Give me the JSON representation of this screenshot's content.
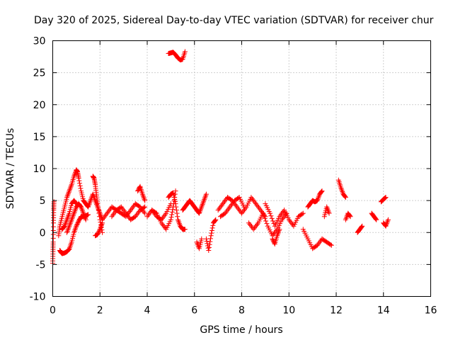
{
  "chart_data": {
    "type": "scatter",
    "title": "Day 320 of 2025, Sidereal Day-to-day VTEC variation (SDTVAR) for receiver chur",
    "xlabel": "GPS time / hours",
    "ylabel": "SDTVAR / TECUs",
    "xlim": [
      0,
      16
    ],
    "ylim": [
      -10,
      30
    ],
    "xticks": [
      0,
      2,
      4,
      6,
      8,
      10,
      12,
      14,
      16
    ],
    "yticks": [
      -10,
      -5,
      0,
      5,
      10,
      15,
      20,
      25,
      30
    ],
    "grid": true,
    "marker": "plus",
    "color": "#ff0000",
    "segments": [
      {
        "x": [
          0.0,
          0.01,
          0.02,
          0.03,
          0.04,
          0.05
        ],
        "y": [
          -4.8,
          -3.0,
          -1.5,
          1.5,
          3.5,
          4.8
        ]
      },
      {
        "x": [
          0.3,
          0.35,
          0.4,
          0.5,
          0.6,
          0.7
        ],
        "y": [
          -2.8,
          -3.1,
          -3.3,
          -3.2,
          -3.0,
          -2.6
        ]
      },
      {
        "x": [
          0.7,
          0.8,
          0.9,
          1.0,
          1.1,
          1.2,
          1.3,
          1.4,
          1.5
        ],
        "y": [
          -2.6,
          -1.5,
          0.0,
          1.0,
          1.8,
          2.5,
          2.5,
          2.6,
          2.8
        ]
      },
      {
        "x": [
          0.25,
          0.3,
          0.4,
          0.5,
          0.6,
          0.7,
          0.8,
          0.9,
          1.0,
          1.05,
          1.1,
          1.2,
          1.3
        ],
        "y": [
          -0.5,
          1.0,
          2.5,
          4.0,
          5.5,
          6.5,
          7.5,
          8.8,
          9.8,
          9.5,
          8.5,
          6.5,
          5.0
        ]
      },
      {
        "x": [
          1.3,
          1.4,
          1.5,
          1.6,
          1.7,
          1.8,
          1.9,
          2.0,
          2.1
        ],
        "y": [
          5.0,
          4.5,
          4.0,
          5.0,
          6.0,
          5.0,
          4.0,
          3.0,
          2.0
        ]
      },
      {
        "x": [
          0.6,
          0.7,
          0.8,
          0.9,
          1.0,
          1.1,
          1.2,
          1.3,
          1.4
        ],
        "y": [
          0.0,
          1.0,
          2.0,
          3.0,
          4.0,
          4.5,
          4.0,
          3.0,
          2.0
        ]
      },
      {
        "x": [
          0.4,
          0.5,
          0.6,
          0.7,
          0.8,
          0.9,
          1.0
        ],
        "y": [
          0.5,
          1.0,
          2.0,
          3.0,
          4.5,
          5.0,
          4.5
        ]
      },
      {
        "x": [
          1.7,
          1.75,
          1.8,
          1.85,
          1.9,
          2.0,
          2.1
        ],
        "y": [
          8.8,
          8.5,
          7.5,
          6.0,
          4.5,
          2.0,
          0.0
        ]
      },
      {
        "x": [
          1.8,
          1.9,
          2.0,
          2.1
        ],
        "y": [
          -0.5,
          -0.3,
          0.5,
          1.5
        ]
      },
      {
        "x": [
          2.1,
          2.3,
          2.5,
          2.7,
          2.9,
          3.1,
          3.3,
          3.5,
          3.7,
          3.9
        ],
        "y": [
          2.0,
          3.0,
          4.0,
          3.5,
          3.0,
          2.5,
          3.5,
          4.5,
          4.0,
          3.0
        ]
      },
      {
        "x": [
          2.5,
          2.7,
          2.9,
          3.1,
          3.3,
          3.5,
          3.7,
          3.9
        ],
        "y": [
          2.5,
          3.5,
          4.0,
          3.0,
          2.0,
          2.5,
          3.5,
          4.0
        ]
      },
      {
        "x": [
          3.6,
          3.7,
          3.8,
          3.9
        ],
        "y": [
          6.5,
          7.2,
          6.0,
          5.0
        ]
      },
      {
        "x": [
          4.0,
          4.2,
          4.4,
          4.6,
          4.8,
          5.0,
          5.1,
          5.2
        ],
        "y": [
          2.5,
          3.5,
          3.0,
          1.5,
          0.5,
          2.0,
          4.0,
          6.5
        ]
      },
      {
        "x": [
          4.2,
          4.4,
          4.6,
          4.8,
          5.0
        ],
        "y": [
          3.5,
          2.5,
          2.0,
          3.0,
          4.5
        ]
      },
      {
        "x": [
          4.9,
          5.0,
          5.1,
          5.2,
          5.3,
          5.4,
          5.5,
          5.6
        ],
        "y": [
          5.5,
          6.0,
          6.2,
          4.5,
          2.0,
          1.0,
          0.5,
          0.5
        ]
      },
      {
        "x": [
          4.9,
          5.0,
          5.1,
          5.2,
          5.3,
          5.4,
          5.5,
          5.6
        ],
        "y": [
          28.0,
          28.1,
          28.2,
          27.8,
          27.3,
          27.0,
          27.1,
          28.3
        ]
      },
      {
        "x": [
          5.5,
          5.6,
          5.7,
          5.8,
          5.9,
          6.0,
          6.1,
          6.2,
          6.3,
          6.4,
          6.5
        ],
        "y": [
          3.5,
          4.0,
          4.5,
          5.0,
          4.5,
          4.0,
          3.5,
          3.0,
          4.0,
          5.0,
          6.0
        ]
      },
      {
        "x": [
          6.1,
          6.2,
          6.3
        ],
        "y": [
          -1.5,
          -2.5,
          -1.0
        ]
      },
      {
        "x": [
          6.5,
          6.6,
          6.7,
          6.8,
          6.9
        ],
        "y": [
          -1.0,
          -2.8,
          -0.5,
          1.5,
          2.0
        ]
      },
      {
        "x": [
          7.0,
          7.2,
          7.4,
          7.6,
          7.8,
          8.0,
          8.2,
          8.4,
          8.6,
          8.8,
          9.0
        ],
        "y": [
          3.5,
          4.5,
          5.5,
          5.0,
          4.0,
          3.0,
          4.0,
          5.5,
          4.5,
          3.5,
          2.5
        ]
      },
      {
        "x": [
          7.1,
          7.3,
          7.5,
          7.7,
          7.9,
          8.1
        ],
        "y": [
          2.5,
          3.0,
          4.0,
          5.0,
          5.5,
          4.0
        ]
      },
      {
        "x": [
          8.3,
          8.5,
          8.7,
          8.9,
          9.1,
          9.3,
          9.5,
          9.7,
          9.9
        ],
        "y": [
          1.5,
          0.5,
          1.5,
          3.0,
          1.0,
          -0.5,
          0.5,
          2.0,
          3.0
        ]
      },
      {
        "x": [
          9.0,
          9.2,
          9.4,
          9.6,
          9.8,
          10.0,
          10.2,
          10.4,
          10.6
        ],
        "y": [
          4.5,
          3.0,
          1.0,
          2.5,
          3.5,
          2.0,
          1.0,
          2.5,
          3.0
        ]
      },
      {
        "x": [
          9.3,
          9.4,
          9.5,
          9.6
        ],
        "y": [
          -1.0,
          -1.8,
          -0.5,
          0.5
        ]
      },
      {
        "x": [
          10.6,
          10.8,
          11.0,
          11.2,
          11.4,
          11.6,
          11.8
        ],
        "y": [
          0.5,
          -1.0,
          -2.5,
          -2.0,
          -1.0,
          -1.5,
          -2.0
        ]
      },
      {
        "x": [
          10.8,
          10.9,
          11.0,
          11.1,
          11.2,
          11.3,
          11.4
        ],
        "y": [
          4.0,
          4.5,
          5.0,
          4.8,
          5.0,
          6.0,
          6.5
        ]
      },
      {
        "x": [
          11.5,
          11.6,
          11.7
        ],
        "y": [
          2.5,
          4.0,
          3.0
        ]
      },
      {
        "x": [
          12.1,
          12.2,
          12.3,
          12.4
        ],
        "y": [
          8.2,
          7.0,
          6.0,
          5.5
        ]
      },
      {
        "x": [
          12.4,
          12.5,
          12.6
        ],
        "y": [
          2.0,
          3.0,
          2.5
        ]
      },
      {
        "x": [
          12.9,
          13.0,
          13.1
        ],
        "y": [
          0.0,
          0.5,
          1.0
        ]
      },
      {
        "x": [
          13.5,
          13.6,
          13.7
        ],
        "y": [
          3.0,
          2.5,
          2.0
        ]
      },
      {
        "x": [
          13.9,
          14.0,
          14.1
        ],
        "y": [
          4.8,
          5.2,
          5.5
        ]
      },
      {
        "x": [
          14.0,
          14.1,
          14.2
        ],
        "y": [
          1.5,
          1.0,
          2.0
        ]
      }
    ]
  }
}
